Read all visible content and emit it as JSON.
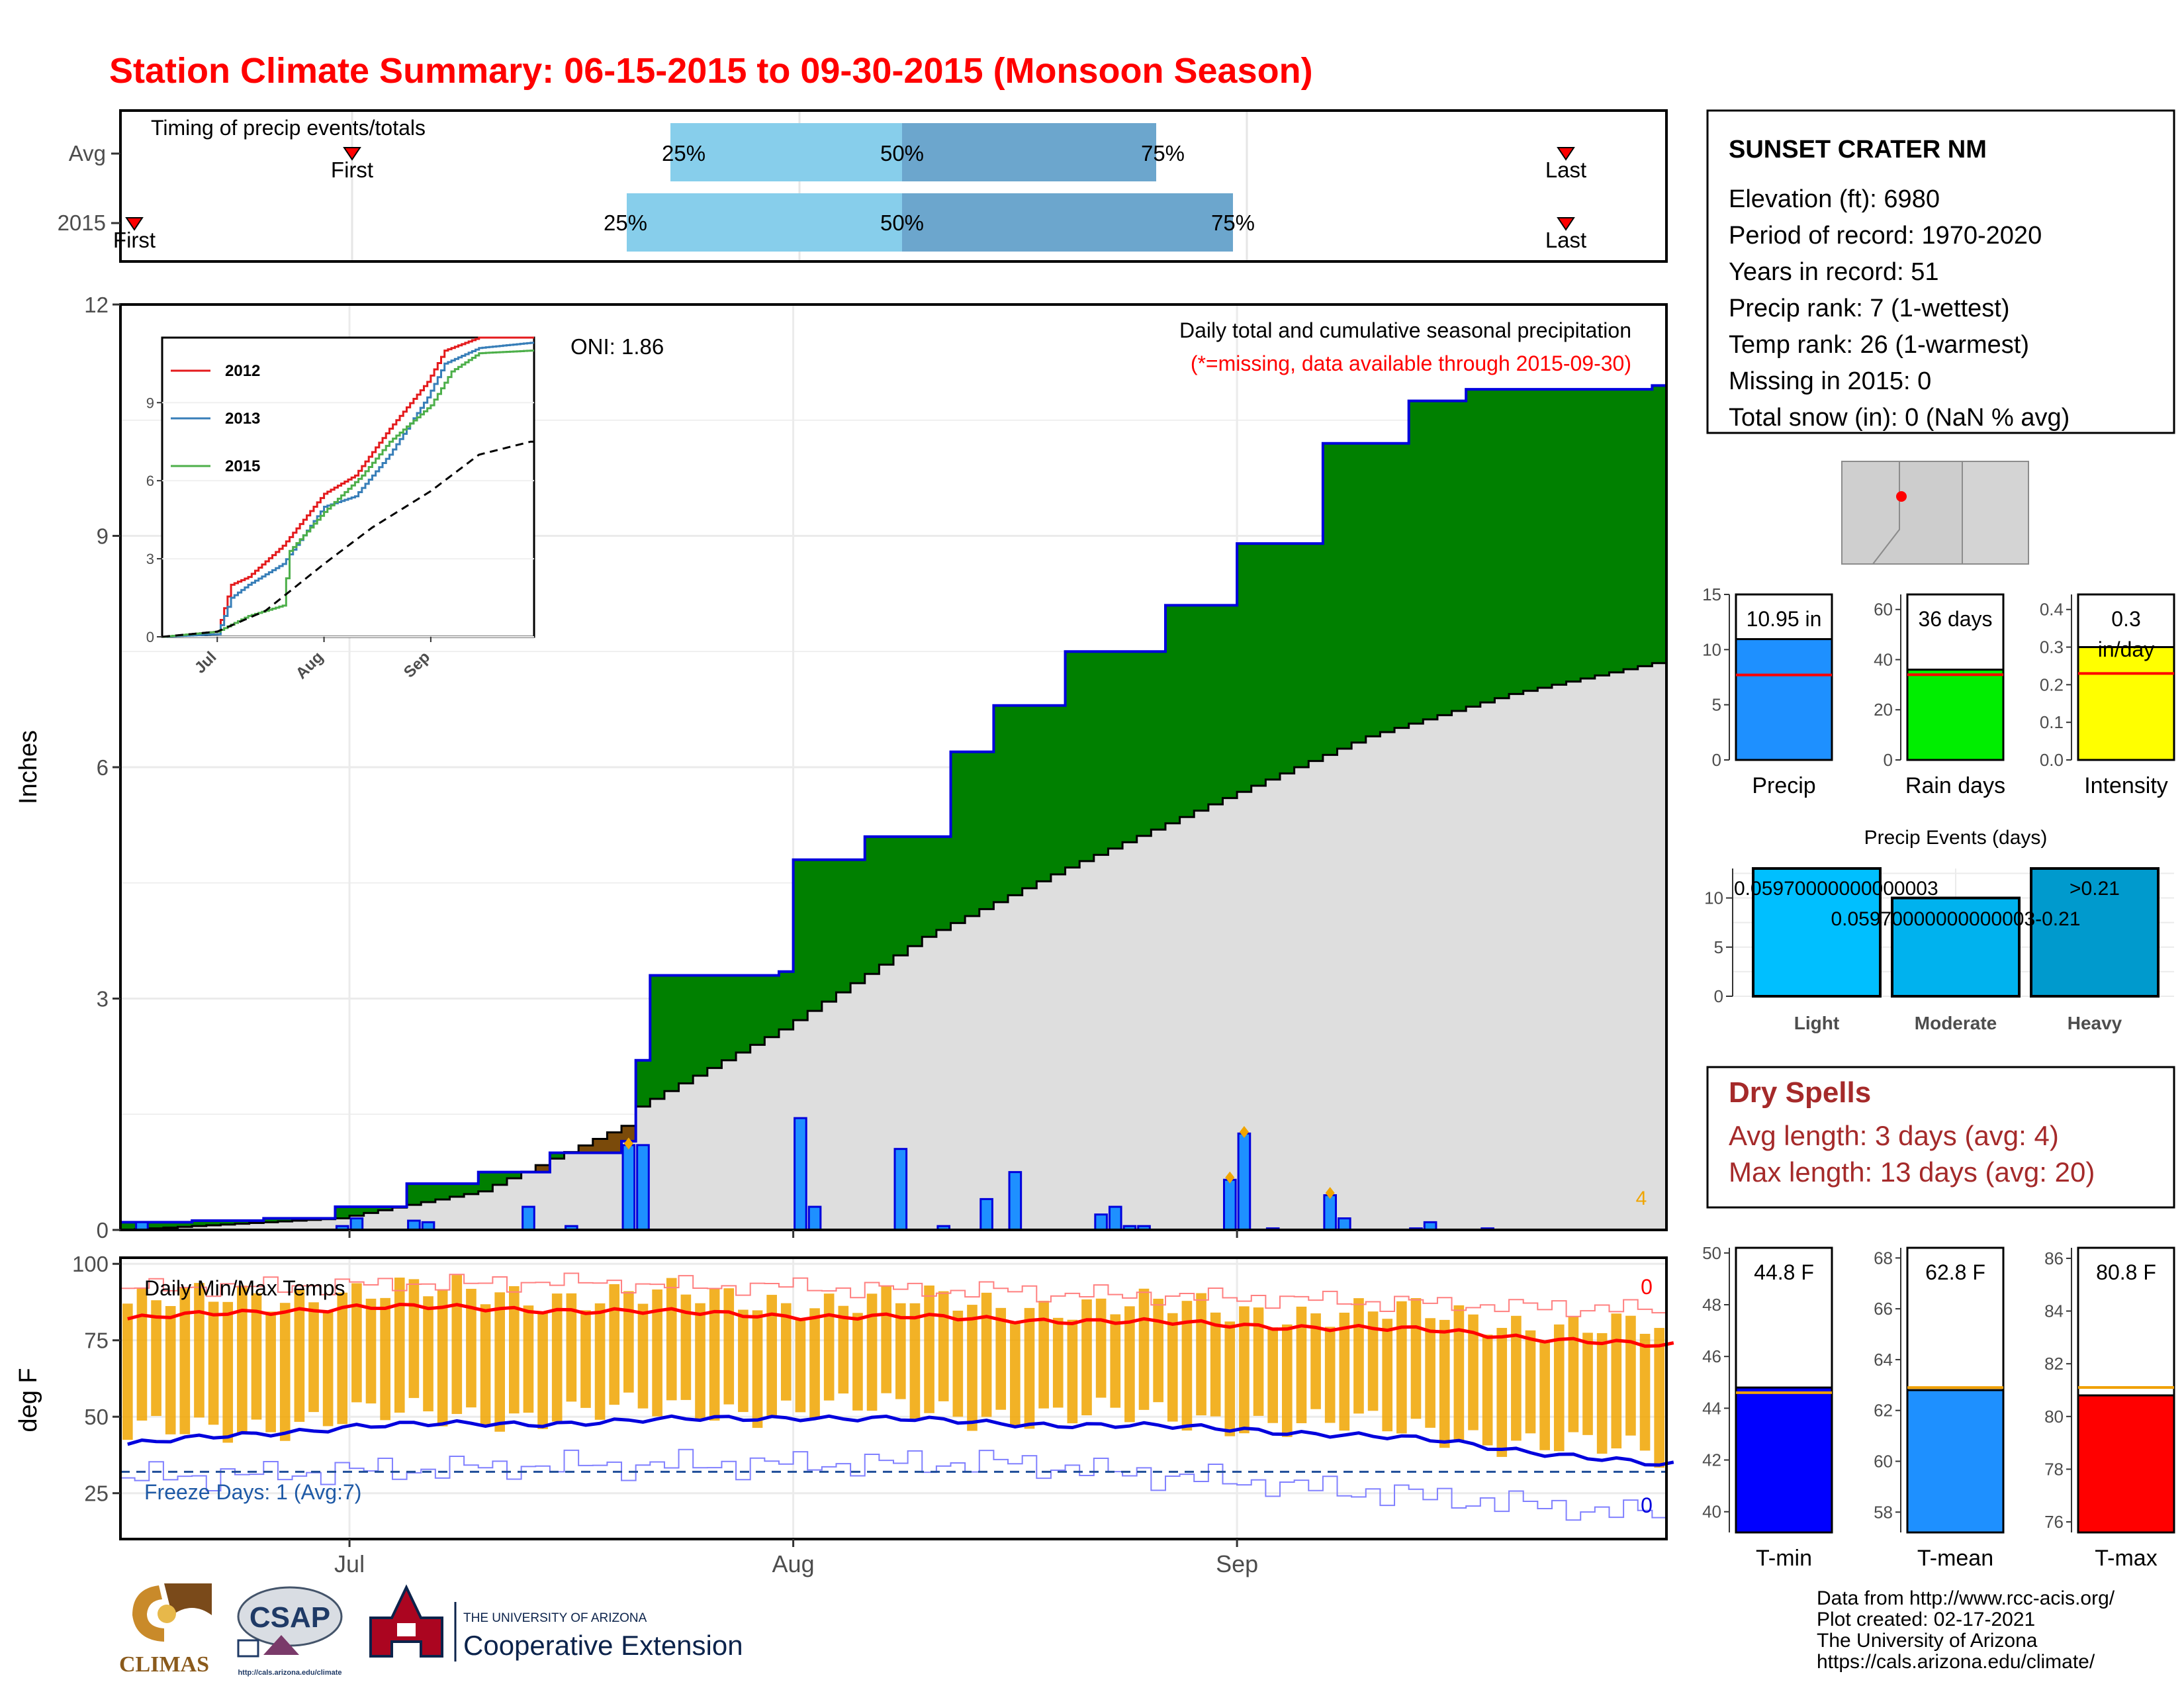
{
  "title": "Station Climate Summary: 06-15-2015 to 09-30-2015 (Monsoon Season)",
  "colors": {
    "title": "#ff0000",
    "green": "#008000",
    "brown": "#7a4a0a",
    "grey": "#dedede",
    "blue": "#0000dd",
    "bar_blue": "#1e90ff",
    "orange": "#f0a500",
    "light_blue": "#87ceeb",
    "mid_blue": "#6ca6cd",
    "red": "#ff0000",
    "dry_red": "#a52a2a",
    "yellow": "#ffff00",
    "lime": "#00ee00",
    "sky": "#00bfff",
    "sky2": "#00b2ee",
    "sky3": "#009acd",
    "navy": "#0c4a99"
  },
  "timing": {
    "title": "Timing of precip events/totals",
    "rows": [
      "Avg",
      "2015"
    ],
    "avg": {
      "first": "First",
      "last": "Last",
      "p25": "25%",
      "p50": "50%",
      "p75": "75%"
    },
    "y2015": {
      "first": "First",
      "last": "Last",
      "p25": "25%",
      "p50": "50%",
      "p75": "75%"
    }
  },
  "main_plot": {
    "ylabel": "Inches",
    "yticks": [
      "0",
      "3",
      "6",
      "9",
      "12"
    ],
    "xticks": [
      "Jul",
      "Aug",
      "Sep"
    ],
    "heading": "Daily total and cumulative seasonal precipitation",
    "missing_note": "(*=missing, data available through 2015-09-30)",
    "oni": "ONI: 1.86",
    "corner_count": "4"
  },
  "inset": {
    "yticks": [
      "0",
      "3",
      "6",
      "9"
    ],
    "xticks": [
      "Jul",
      "Aug",
      "Sep"
    ],
    "legend": [
      "2012",
      "2013",
      "2015"
    ]
  },
  "temp_plot": {
    "ylabel": "deg F",
    "yticks": [
      "25",
      "50",
      "75",
      "100"
    ],
    "title": "Daily Min/Max Temps",
    "freeze": "Freeze Days: 1 (Avg:7)",
    "max_count": "0",
    "min_count": "0"
  },
  "station": {
    "name": "SUNSET CRATER NM",
    "lines": [
      "Elevation (ft): 6980",
      "Period of record: 1970-2020",
      "Years in record: 51",
      "Precip rank: 7 (1-wettest)",
      "Temp rank: 26 (1-warmest)",
      "Missing in 2015: 0",
      "Total snow (in): 0 (NaN % avg)"
    ]
  },
  "precip_bars": [
    {
      "label": "Precip",
      "value_text": "10.95 in",
      "yticks": [
        "0",
        "5",
        "10",
        "15"
      ]
    },
    {
      "label": "Rain days",
      "value_text": "36 days",
      "yticks": [
        "0",
        "20",
        "40",
        "60"
      ]
    },
    {
      "label": "Intensity",
      "value_text": "0.3",
      "value_text2": "in/day",
      "yticks": [
        "0.0",
        "0.1",
        "0.2",
        "0.3",
        "0.4"
      ]
    }
  ],
  "events": {
    "title": "Precip Events (days)",
    "labels": [
      "Light",
      "Moderate",
      "Heavy"
    ],
    "bar_texts": [
      "0.05970000000000003",
      "0.05970000000000003-0.21",
      ">0.21"
    ],
    "yticks": [
      "0",
      "5",
      "10"
    ]
  },
  "dry": {
    "title": "Dry Spells",
    "lines": [
      "Avg length: 3 days (avg: 4)",
      "Max length: 13 days (avg: 20)"
    ]
  },
  "temp_bars": [
    {
      "label": "T-min",
      "value_text": "44.8 F",
      "yticks": [
        "40",
        "42",
        "44",
        "46",
        "48",
        "50"
      ]
    },
    {
      "label": "T-mean",
      "value_text": "62.8 F",
      "yticks": [
        "58",
        "60",
        "62",
        "64",
        "66",
        "68"
      ]
    },
    {
      "label": "T-max",
      "value_text": "80.8 F",
      "yticks": [
        "76",
        "78",
        "80",
        "82",
        "84",
        "86"
      ]
    }
  ],
  "credits": [
    "Data from http://www.rcc-acis.org/",
    "Plot created: 02-17-2021",
    "The University of Arizona",
    "https://cals.arizona.edu/climate/"
  ],
  "logos": {
    "climas": "CLIMAS",
    "csap": "CSAP",
    "csap_url": "http://cals.arizona.edu/climate",
    "ua_line1": "THE UNIVERSITY OF ARIZONA",
    "ua_line2": "Cooperative Extension"
  },
  "chart_data": [
    {
      "type": "area",
      "title": "Daily total and cumulative seasonal precipitation",
      "ylabel": "Inches",
      "ylim": [
        0,
        12
      ],
      "x_range": [
        "2015-06-15",
        "2015-09-30"
      ],
      "series": [
        {
          "name": "2015",
          "x": [
            "2015-06-15",
            "2015-06-20",
            "2015-06-25",
            "2015-06-30",
            "2015-07-05",
            "2015-07-10",
            "2015-07-15",
            "2015-07-20",
            "2015-07-21",
            "2015-07-22",
            "2015-07-31",
            "2015-08-01",
            "2015-08-06",
            "2015-08-12",
            "2015-08-15",
            "2015-08-20",
            "2015-08-27",
            "2015-09-01",
            "2015-09-07",
            "2015-09-13",
            "2015-09-17",
            "2015-09-30"
          ],
          "values": [
            0.1,
            0.12,
            0.15,
            0.3,
            0.6,
            0.75,
            1.0,
            1.15,
            2.2,
            3.3,
            3.35,
            4.8,
            5.1,
            6.2,
            6.8,
            7.5,
            8.1,
            8.9,
            10.2,
            10.75,
            10.9,
            10.95
          ]
        },
        {
          "name": "Average",
          "x": [
            "2015-06-15",
            "2015-06-30",
            "2015-07-10",
            "2015-07-20",
            "2015-07-21",
            "2015-07-31",
            "2015-08-10",
            "2015-08-20",
            "2015-08-31",
            "2015-09-10",
            "2015-09-20",
            "2015-09-30"
          ],
          "values": [
            0.0,
            0.15,
            0.5,
            1.35,
            1.6,
            2.6,
            3.8,
            4.7,
            5.6,
            6.4,
            6.95,
            7.35
          ]
        },
        {
          "name": "Daily precip",
          "x": [
            "2015-06-16",
            "2015-06-30",
            "2015-07-01",
            "2015-07-05",
            "2015-07-06",
            "2015-07-13",
            "2015-07-16",
            "2015-07-20",
            "2015-07-21",
            "2015-08-01",
            "2015-08-02",
            "2015-08-08",
            "2015-08-11",
            "2015-08-14",
            "2015-08-16",
            "2015-08-22",
            "2015-08-23",
            "2015-08-24",
            "2015-08-25",
            "2015-08-31",
            "2015-09-01",
            "2015-09-03",
            "2015-09-07",
            "2015-09-08",
            "2015-09-13",
            "2015-09-14",
            "2015-09-18"
          ],
          "values": [
            0.1,
            0.05,
            0.15,
            0.12,
            0.1,
            0.3,
            0.05,
            1.1,
            1.1,
            1.45,
            0.3,
            1.05,
            0.05,
            0.4,
            0.75,
            0.2,
            0.3,
            0.05,
            0.05,
            0.65,
            1.25,
            0.02,
            0.45,
            0.15,
            0.02,
            0.1,
            0.02
          ]
        }
      ]
    },
    {
      "type": "line",
      "title": "",
      "ylim": [
        0,
        11.5
      ],
      "x_range": [
        "2015-06-15",
        "2015-09-30"
      ],
      "series": [
        {
          "name": "2012",
          "x": [
            "2015-06-15",
            "2015-07-01",
            "2015-07-05",
            "2015-07-10",
            "2015-07-20",
            "2015-08-01",
            "2015-08-10",
            "2015-08-20",
            "2015-08-31",
            "2015-09-05",
            "2015-09-15",
            "2015-09-30"
          ],
          "values": [
            0,
            0.2,
            2.0,
            2.3,
            3.5,
            5.5,
            6.2,
            8.0,
            9.8,
            11.0,
            11.5,
            11.5
          ]
        },
        {
          "name": "2013",
          "x": [
            "2015-06-15",
            "2015-07-01",
            "2015-07-05",
            "2015-07-10",
            "2015-07-20",
            "2015-08-01",
            "2015-08-10",
            "2015-08-20",
            "2015-08-31",
            "2015-09-05",
            "2015-09-15",
            "2015-09-30"
          ],
          "values": [
            0,
            0.1,
            1.5,
            2.0,
            2.8,
            5.0,
            5.4,
            7.0,
            9.2,
            10.5,
            11.1,
            11.3
          ]
        },
        {
          "name": "2015",
          "x": [
            "2015-06-15",
            "2015-07-01",
            "2015-07-10",
            "2015-07-20",
            "2015-07-22",
            "2015-08-01",
            "2015-08-12",
            "2015-08-20",
            "2015-09-01",
            "2015-09-07",
            "2015-09-15",
            "2015-09-30"
          ],
          "values": [
            0,
            0.2,
            0.8,
            1.2,
            3.3,
            4.8,
            6.2,
            7.5,
            8.9,
            10.2,
            10.9,
            11.0
          ]
        },
        {
          "name": "Average",
          "x": [
            "2015-06-15",
            "2015-07-01",
            "2015-07-15",
            "2015-08-01",
            "2015-08-15",
            "2015-09-01",
            "2015-09-15",
            "2015-09-30"
          ],
          "values": [
            0,
            0.2,
            1.0,
            2.8,
            4.2,
            5.6,
            7.0,
            7.5
          ]
        }
      ]
    },
    {
      "type": "line",
      "title": "Daily Min/Max Temps",
      "ylabel": "deg F",
      "ylim": [
        10,
        102
      ],
      "x_range": [
        "2015-06-15",
        "2015-09-30"
      ],
      "series": [
        {
          "name": "Avg max",
          "x": [
            "2015-06-15",
            "2015-07-01",
            "2015-07-15",
            "2015-08-01",
            "2015-08-15",
            "2015-09-01",
            "2015-09-15",
            "2015-09-30"
          ],
          "values": [
            82,
            86,
            85,
            83,
            82,
            80,
            78,
            73
          ]
        },
        {
          "name": "Avg min",
          "x": [
            "2015-06-15",
            "2015-07-01",
            "2015-07-15",
            "2015-08-01",
            "2015-08-15",
            "2015-09-01",
            "2015-09-15",
            "2015-09-30"
          ],
          "values": [
            41,
            47,
            48,
            50,
            48,
            46,
            42,
            34
          ]
        },
        {
          "name": "Record max",
          "x": [
            "2015-06-15",
            "2015-07-15",
            "2015-08-15",
            "2015-09-30"
          ],
          "values": [
            92,
            94,
            91,
            85
          ]
        },
        {
          "name": "Record min",
          "x": [
            "2015-06-15",
            "2015-07-15",
            "2015-08-15",
            "2015-09-30"
          ],
          "values": [
            30,
            34,
            35,
            18
          ]
        },
        {
          "name": "Freeze",
          "x": [
            "2015-06-15",
            "2015-09-30"
          ],
          "values": [
            32,
            32
          ]
        }
      ]
    },
    {
      "type": "bar",
      "categories": [
        "Precip",
        "Rain days",
        "Intensity"
      ],
      "values": [
        10.95,
        36,
        0.3
      ],
      "averages": [
        7.7,
        34,
        0.23
      ]
    },
    {
      "type": "bar",
      "title": "Precip Events (days)",
      "categories": [
        "Light",
        "Moderate",
        "Heavy"
      ],
      "values": [
        13,
        10,
        13
      ],
      "ylim": [
        0,
        13
      ]
    },
    {
      "type": "bar",
      "categories": [
        "T-min",
        "T-mean",
        "T-max"
      ],
      "values": [
        44.8,
        62.8,
        80.8
      ],
      "averages": [
        44.6,
        62.9,
        81.1
      ]
    }
  ]
}
